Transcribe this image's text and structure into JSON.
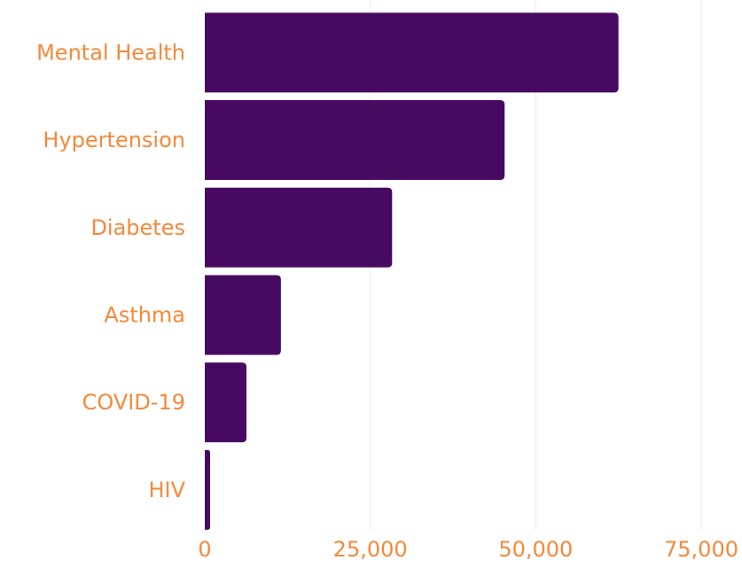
{
  "chart_data": {
    "type": "bar",
    "orientation": "horizontal",
    "categories": [
      "Mental Health",
      "Hypertension",
      "Diabetes",
      "Asthma",
      "COVID-19",
      "HIV"
    ],
    "values": [
      62500,
      45300,
      28300,
      11500,
      6300,
      800
    ],
    "xlim": [
      0,
      75000
    ],
    "xticks": [
      0,
      25000,
      50000,
      75000
    ],
    "xtick_labels": [
      "0",
      "25,000",
      "50,000",
      "75,000"
    ],
    "grid": true,
    "title": "",
    "xlabel": "",
    "ylabel": ""
  },
  "colors": {
    "bar": "#470a61",
    "label": "#f5893a",
    "grid": "#fbe7dc",
    "background": "#ffffff"
  }
}
